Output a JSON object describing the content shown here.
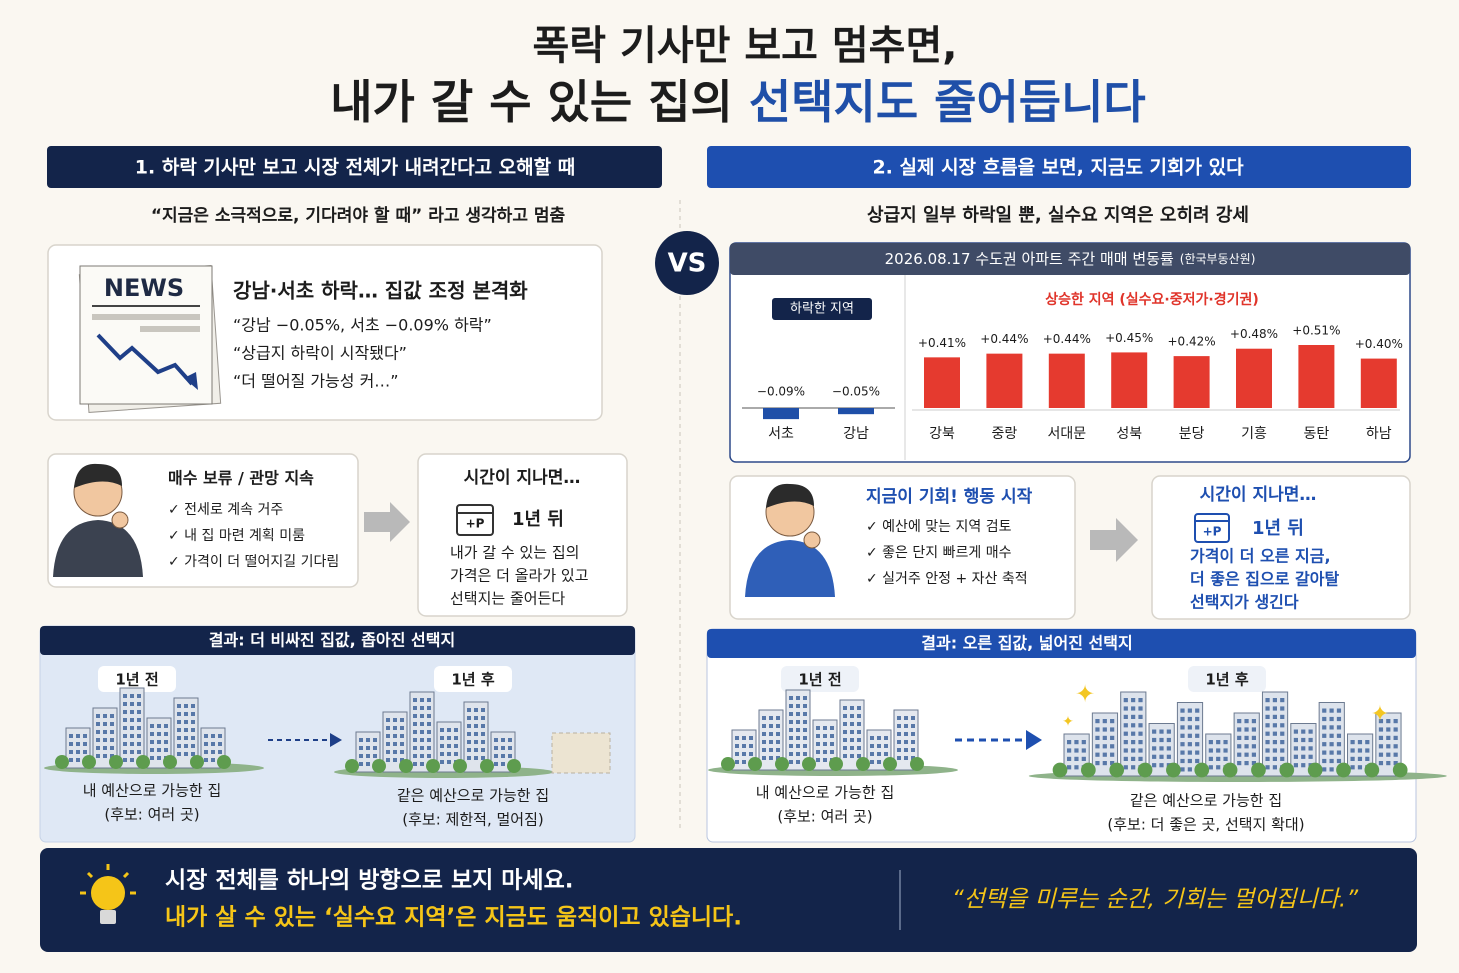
{
  "title": {
    "line1": "폭락 기사만 보고 멈추면,",
    "line2_plain": "내가 갈 수 있는 집의 ",
    "line2_highlight": "선택지도 줄어듭니다"
  },
  "vs": "VS",
  "left": {
    "header": "1. 하락 기사만 보고 시장 전체가 내려간다고 오해할 때",
    "subtitle": "“지금은 소극적으로, 기다려야 할 때” 라고 생각하고 멈춤",
    "news": {
      "badge": "NEWS",
      "headline": "강남·서초 하락… 집값 조정 본격화",
      "quotes": [
        "“강남 −0.05%, 서초 −0.09% 하락”",
        "“상급지 하락이 시작됐다”",
        "“더 떨어질 가능성 커…”"
      ]
    },
    "action": {
      "title": "매수 보류 / 관망 지속",
      "items": [
        "✓ 전세로 계속 거주",
        "✓ 내 집 마련 계획 미룸",
        "✓ 가격이 더 떨어지길 기다림"
      ]
    },
    "later": {
      "title": "시간이 지나면…",
      "icon": "+P",
      "period": "1년 뒤",
      "text": [
        "내가 갈 수 있는 집의",
        "가격은 더 올라가 있고",
        "선택지는 줄어든다"
      ]
    },
    "result": {
      "title": "결과: 더 비싸진 집값, 좁아진 선택지",
      "before": "1년 전",
      "after": "1년 후",
      "before_caption": [
        "내 예산으로 가능한 집",
        "(후보: 여러 곳)"
      ],
      "after_caption": [
        "같은 예산으로 가능한 집",
        "(후보: 제한적, 멀어짐)"
      ]
    }
  },
  "right": {
    "header": "2. 실제 시장 흐름을 보면, 지금도 기회가 있다",
    "subtitle": "상급지 일부 하락일 뿐, 실수요 지역은 오히려 강세",
    "action": {
      "title": "지금이 기회! 행동 시작",
      "items": [
        "✓ 예산에 맞는 지역 검토",
        "✓ 좋은 단지 빠르게 매수",
        "✓ 실거주 안정 + 자산 축적"
      ]
    },
    "later": {
      "title": "시간이 지나면…",
      "icon": "+P",
      "period": "1년 뒤",
      "text": [
        "가격이 더 오른 지금,",
        "더 좋은 집으로 갈아탈",
        "선택지가 생긴다"
      ]
    },
    "result": {
      "title": "결과: 오른 집값, 넓어진 선택지",
      "before": "1년 전",
      "after": "1년 후",
      "before_caption": [
        "내 예산으로 가능한 집",
        "(후보: 여러 곳)"
      ],
      "after_caption": [
        "같은 예산으로 가능한 집",
        "(후보: 더 좋은 곳, 선택지 확대)"
      ]
    }
  },
  "chart_data": {
    "type": "bar",
    "title": "2026.08.17 수도권 아파트 주간 매매 변동률",
    "source": "(한국부동산원)",
    "groups": [
      "하락한 지역",
      "상승한 지역 (실수요·중저가·경기권)"
    ],
    "categories": [
      "서초",
      "강남",
      "강북",
      "중랑",
      "서대문",
      "성북",
      "분당",
      "기흥",
      "동탄",
      "하남"
    ],
    "values": [
      -0.09,
      -0.05,
      0.41,
      0.44,
      0.44,
      0.45,
      0.42,
      0.48,
      0.51,
      0.4
    ],
    "value_labels": [
      "−0.09%",
      "−0.05%",
      "+0.41%",
      "+0.44%",
      "+0.44%",
      "+0.45%",
      "+0.42%",
      "+0.48%",
      "+0.51%",
      "+0.40%"
    ],
    "colors": [
      "#1f4fa8",
      "#1f4fa8",
      "#e53a2f",
      "#e53a2f",
      "#e53a2f",
      "#e53a2f",
      "#e53a2f",
      "#e53a2f",
      "#e53a2f",
      "#e53a2f"
    ]
  },
  "footer": {
    "line1": "시장 전체를 하나의 방향으로 보지 마세요.",
    "line2": "내가 살 수 있는 ‘실수요 지역’은 지금도 움직이고 있습니다.",
    "quote": "“선택을 미루는 순간, 기회는 멀어집니다.”"
  }
}
